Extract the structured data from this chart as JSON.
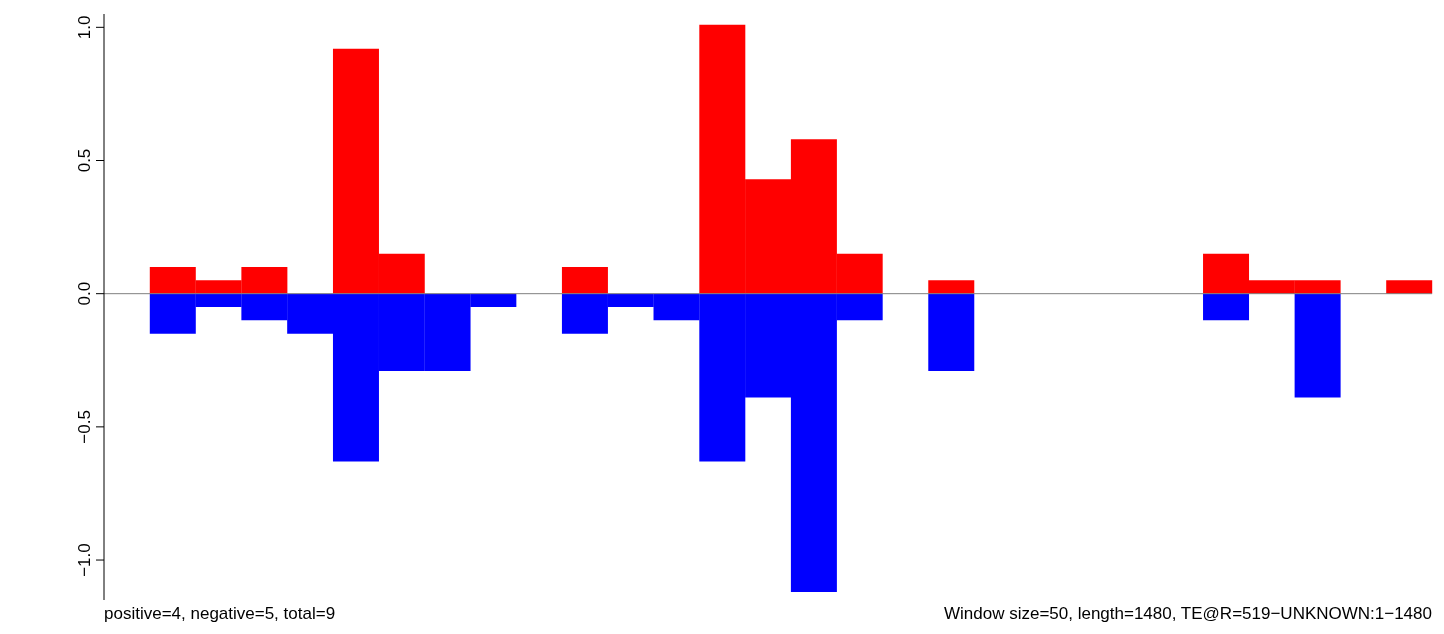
{
  "chart_data": {
    "type": "bar",
    "stacked": true,
    "tick_labels": "y",
    "categories": [
      null,
      null,
      null,
      null,
      null,
      null,
      null,
      null,
      null,
      null,
      null,
      null,
      null,
      null,
      null,
      null,
      null,
      null,
      null,
      null,
      null,
      null,
      null,
      null,
      null,
      null,
      null,
      null,
      null
    ],
    "series": [
      {
        "color": "#ff0000",
        "values": [
          null,
          0.1,
          0.05,
          0.1,
          null,
          0.92,
          0.15,
          null,
          null,
          null,
          0.1,
          null,
          null,
          1.01,
          0.43,
          0.58,
          0.15,
          null,
          0.05,
          null,
          null,
          null,
          null,
          null,
          0.15,
          0.05,
          0.05,
          null,
          0.05
        ]
      },
      {
        "color": "#0000ff",
        "values": [
          null,
          -0.15,
          -0.05,
          -0.1,
          -0.15,
          -0.63,
          -0.29,
          -0.29,
          -0.05,
          null,
          -0.15,
          -0.05,
          -0.1,
          -0.63,
          -0.39,
          -1.12,
          -0.1,
          null,
          -0.29,
          null,
          null,
          null,
          null,
          null,
          -0.1,
          null,
          -0.39,
          null,
          null
        ]
      }
    ],
    "ylim": [
      -1.15,
      1.05
    ],
    "yticks": [
      {
        "value": -1,
        "label": "−1.0"
      },
      {
        "value": -0.5,
        "label": "−0.5"
      },
      {
        "value": 0,
        "label": "0.0"
      },
      {
        "value": 0.5,
        "label": "0.5"
      },
      {
        "value": 1,
        "label": "1.0"
      }
    ],
    "ref_lines": [
      {
        "axis": "y",
        "value": 0,
        "color": "#808080"
      }
    ],
    "annotations": [
      "positive=4, negative=5, total=9",
      "Window size=50, length=1480, TE@R=519−UNKNOWN:1−1480"
    ]
  }
}
